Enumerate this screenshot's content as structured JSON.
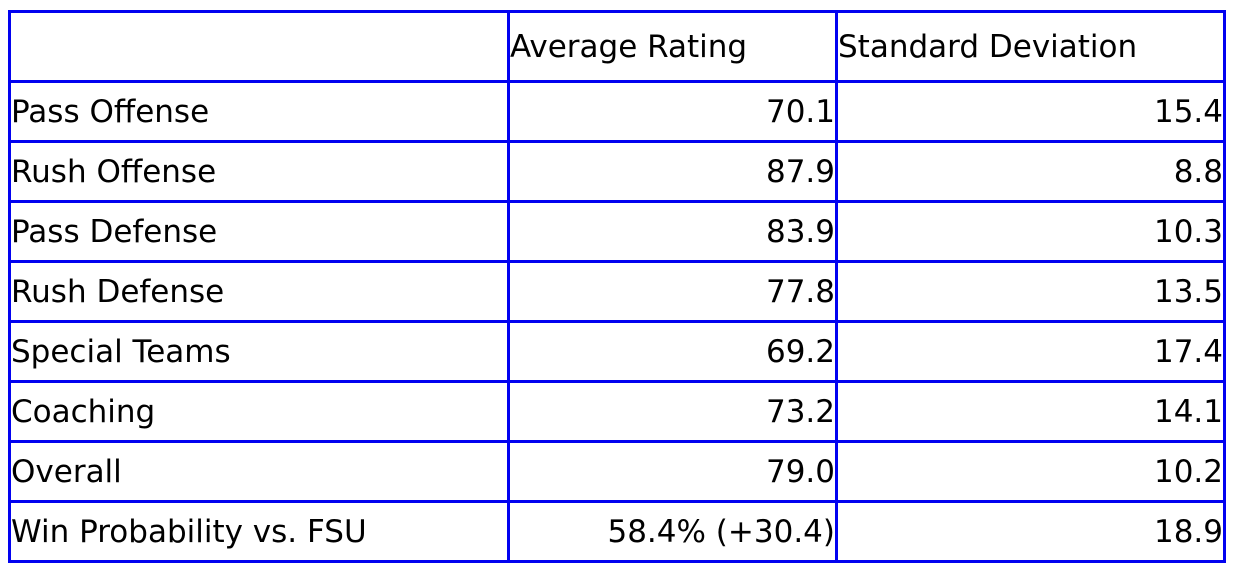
{
  "colors": {
    "border": "#0202f0",
    "text": "#000000",
    "background": "#ffffff"
  },
  "table": {
    "headers": [
      "",
      "Average Rating",
      "Standard Deviation"
    ],
    "rows": [
      {
        "label": "Pass Offense",
        "avg": "70.1",
        "sd": "15.4"
      },
      {
        "label": "Rush Offense",
        "avg": "87.9",
        "sd": "8.8"
      },
      {
        "label": "Pass Defense",
        "avg": "83.9",
        "sd": "10.3"
      },
      {
        "label": "Rush Defense",
        "avg": "77.8",
        "sd": "13.5"
      },
      {
        "label": "Special Teams",
        "avg": "69.2",
        "sd": "17.4"
      },
      {
        "label": "Coaching",
        "avg": "73.2",
        "sd": "14.1"
      },
      {
        "label": "Overall",
        "avg": "79.0",
        "sd": "10.2"
      },
      {
        "label": "Win Probability vs. FSU",
        "avg": "58.4% (+30.4)",
        "sd": "18.9"
      }
    ]
  },
  "chart_data": {
    "type": "table",
    "title": "",
    "columns": [
      "",
      "Average Rating",
      "Standard Deviation"
    ],
    "rows": [
      [
        "Pass Offense",
        70.1,
        15.4
      ],
      [
        "Rush Offense",
        87.9,
        8.8
      ],
      [
        "Pass Defense",
        83.9,
        10.3
      ],
      [
        "Rush Defense",
        77.8,
        13.5
      ],
      [
        "Special Teams",
        69.2,
        17.4
      ],
      [
        "Coaching",
        73.2,
        14.1
      ],
      [
        "Overall",
        79.0,
        10.2
      ],
      [
        "Win Probability vs. FSU",
        "58.4% (+30.4)",
        18.9
      ]
    ],
    "notes": "Win Probability average-rating cell is the text value 58.4% (+30.4); all numeric cells right-aligned"
  }
}
